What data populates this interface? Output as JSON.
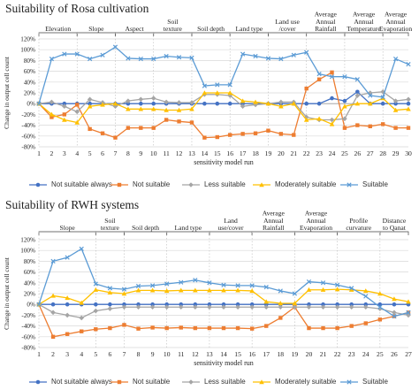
{
  "chart_data": [
    {
      "type": "line",
      "title": "Suitability of Rosa cultivation",
      "xlabel": "sensitivity model run",
      "ylabel": "Change in output cell count",
      "ylim": [
        -80,
        120
      ],
      "yticks": [
        "-80%",
        "-60%",
        "-40%",
        "-20%",
        "0%",
        "20%",
        "40%",
        "60%",
        "80%",
        "100%",
        "120%"
      ],
      "ytick_values": [
        -80,
        -60,
        -40,
        -20,
        0,
        20,
        40,
        60,
        80,
        100,
        120
      ],
      "x": [
        1,
        2,
        3,
        4,
        5,
        6,
        7,
        8,
        9,
        10,
        11,
        12,
        13,
        14,
        15,
        16,
        17,
        18,
        19,
        20,
        21,
        22,
        23,
        24,
        25,
        26,
        27,
        28,
        29,
        30
      ],
      "xticks": [
        "1",
        "2",
        "3",
        "4",
        "5",
        "6",
        "7",
        "8",
        "9",
        "10",
        "11",
        "12",
        "13",
        "14",
        "15",
        "16",
        "17",
        "18",
        "19",
        "20",
        "21",
        "22",
        "23",
        "24",
        "25",
        "26",
        "27",
        "28",
        "29",
        "30"
      ],
      "groups": [
        {
          "label": "Elevation",
          "start": 1,
          "end": 4
        },
        {
          "label": "Slope",
          "start": 4,
          "end": 7
        },
        {
          "label": "Aspect",
          "start": 7,
          "end": 10
        },
        {
          "label": "Soil texture",
          "start": 10,
          "end": 13
        },
        {
          "label": "Soil depth",
          "start": 13,
          "end": 16
        },
        {
          "label": "Land type",
          "start": 16,
          "end": 19
        },
        {
          "label": "Land use /cover",
          "start": 19,
          "end": 22
        },
        {
          "label": "Average Annual Rainfall",
          "start": 22,
          "end": 25
        },
        {
          "label": "Average Annual Temperature",
          "start": 25,
          "end": 28
        },
        {
          "label": "Average Annual Evaporation",
          "start": 28,
          "end": 30
        }
      ],
      "series": [
        {
          "name": "Not suitable always",
          "color": "#4472c4",
          "marker": "circle",
          "values": [
            0,
            0,
            0,
            0,
            0,
            0,
            0,
            0,
            0,
            0,
            0,
            0,
            0,
            0,
            0,
            0,
            0,
            0,
            0,
            0,
            0,
            0,
            0,
            10,
            5,
            22,
            0,
            0,
            0,
            0
          ]
        },
        {
          "name": "Not suitable",
          "color": "#ed7d31",
          "marker": "square",
          "values": [
            0,
            -25,
            -20,
            -2,
            -47,
            -55,
            -63,
            -45,
            -45,
            -45,
            -30,
            -33,
            -35,
            -63,
            -62,
            -58,
            -56,
            -55,
            -50,
            -56,
            -58,
            28,
            45,
            58,
            -45,
            -40,
            -42,
            -38,
            -45,
            -45
          ]
        },
        {
          "name": "Less suitable",
          "color": "#a5a5a5",
          "marker": "diamond",
          "values": [
            0,
            3,
            -5,
            -15,
            8,
            2,
            -5,
            5,
            8,
            10,
            3,
            2,
            2,
            17,
            17,
            15,
            -5,
            -2,
            0,
            3,
            3,
            -25,
            -30,
            -30,
            -28,
            15,
            20,
            22,
            5,
            8
          ]
        },
        {
          "name": "Moderately suitable",
          "color": "#ffc000",
          "marker": "triangle",
          "values": [
            0,
            -20,
            -30,
            -35,
            -5,
            -2,
            0,
            -10,
            -10,
            -10,
            -12,
            -12,
            -10,
            20,
            20,
            20,
            5,
            3,
            0,
            -5,
            0,
            -30,
            -28,
            -38,
            -5,
            0,
            0,
            10,
            -12,
            -10
          ]
        },
        {
          "name": "Suitable",
          "color": "#5b9bd5",
          "marker": "x",
          "values": [
            0,
            83,
            92,
            92,
            83,
            90,
            105,
            84,
            83,
            83,
            88,
            86,
            85,
            33,
            35,
            35,
            92,
            88,
            84,
            83,
            90,
            95,
            55,
            50,
            50,
            45,
            15,
            12,
            83,
            73
          ]
        }
      ],
      "legend": "bottom"
    },
    {
      "type": "line",
      "title": "Suitability of RWH systems",
      "xlabel": "sensitivity model run",
      "ylabel": "Change in output cell count",
      "ylim": [
        -80,
        120
      ],
      "yticks": [
        "-80%",
        "-60%",
        "-40%",
        "-20%",
        "0%",
        "20%",
        "40%",
        "60%",
        "80%",
        "100%",
        "120%"
      ],
      "ytick_values": [
        -80,
        -60,
        -40,
        -20,
        0,
        20,
        40,
        60,
        80,
        100,
        120
      ],
      "x": [
        1,
        2,
        3,
        4,
        5,
        6,
        7,
        8,
        9,
        10,
        11,
        12,
        13,
        14,
        15,
        16,
        17,
        18,
        19,
        20,
        21,
        22,
        23,
        24,
        25,
        26,
        27
      ],
      "xticks": [
        "1",
        "2",
        "3",
        "4",
        "5",
        "6",
        "7",
        "8",
        "9",
        "10",
        "11",
        "12",
        "13",
        "14",
        "15",
        "16",
        "17",
        "18",
        "19",
        "20",
        "21",
        "22",
        "23",
        "24",
        "25",
        "26",
        "27"
      ],
      "groups": [
        {
          "label": "Slope",
          "start": 1,
          "end": 5
        },
        {
          "label": "Soil texture",
          "start": 5,
          "end": 7
        },
        {
          "label": "Soil depth",
          "start": 7,
          "end": 10
        },
        {
          "label": "Land type",
          "start": 10,
          "end": 13
        },
        {
          "label": "Land use/cover",
          "start": 13,
          "end": 16
        },
        {
          "label": "Average Annual Rainfall",
          "start": 16,
          "end": 19
        },
        {
          "label": "Average Annual Evaporation",
          "start": 19,
          "end": 22
        },
        {
          "label": "Profile curvature",
          "start": 22,
          "end": 25
        },
        {
          "label": "Distance to Qanat",
          "start": 25,
          "end": 27
        }
      ],
      "series": [
        {
          "name": "Not suitable always",
          "color": "#4472c4",
          "marker": "circle",
          "values": [
            0,
            0,
            0,
            0,
            0,
            0,
            0,
            0,
            0,
            0,
            0,
            0,
            0,
            0,
            0,
            0,
            0,
            0,
            0,
            0,
            0,
            0,
            0,
            0,
            0,
            0,
            0
          ]
        },
        {
          "name": "Not suitable",
          "color": "#ed7d31",
          "marker": "square",
          "values": [
            0,
            -60,
            -55,
            -50,
            -46,
            -44,
            -38,
            -45,
            -43,
            -44,
            -43,
            -44,
            -44,
            -44,
            -44,
            -45,
            -40,
            -25,
            -5,
            -44,
            -44,
            -44,
            -40,
            -35,
            -28,
            -22,
            -15
          ]
        },
        {
          "name": "Less suitable",
          "color": "#a5a5a5",
          "marker": "diamond",
          "values": [
            0,
            -15,
            -20,
            -25,
            -12,
            -8,
            -5,
            -5,
            -5,
            -5,
            -5,
            -5,
            -5,
            -5,
            -5,
            -5,
            -5,
            -5,
            -5,
            -5,
            -5,
            -5,
            -5,
            -5,
            -8,
            -15,
            -20
          ]
        },
        {
          "name": "Moderately suitable",
          "color": "#ffc000",
          "marker": "triangle",
          "values": [
            0,
            16,
            12,
            3,
            27,
            22,
            20,
            26,
            26,
            25,
            26,
            26,
            26,
            26,
            26,
            25,
            5,
            2,
            2,
            27,
            27,
            28,
            27,
            25,
            20,
            10,
            5
          ]
        },
        {
          "name": "Suitable",
          "color": "#5b9bd5",
          "marker": "x",
          "values": [
            0,
            80,
            87,
            103,
            38,
            30,
            28,
            34,
            35,
            38,
            41,
            45,
            40,
            36,
            35,
            35,
            32,
            25,
            20,
            42,
            40,
            36,
            30,
            15,
            -5,
            -22,
            -15
          ]
        }
      ],
      "legend": "bottom"
    }
  ]
}
